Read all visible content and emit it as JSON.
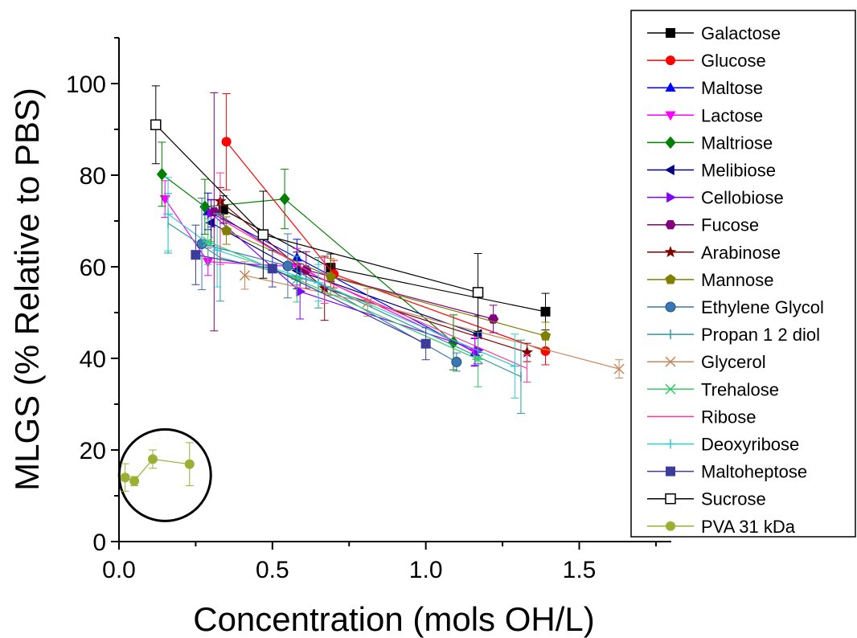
{
  "chart_data": {
    "type": "scatter",
    "title": "",
    "xlabel": "Concentration (mols OH/L)",
    "ylabel": "MLGS (% Relative to PBS)",
    "xlim": [
      0,
      1.8
    ],
    "ylim": [
      0,
      110
    ],
    "x_ticks": [
      "0.0",
      "0.5",
      "1.0",
      "1.5"
    ],
    "y_ticks": [
      "0",
      "20",
      "40",
      "60",
      "80",
      "100"
    ],
    "legend_position": "right",
    "grid": false,
    "annotation": "circle highlighting PVA 31 kDa data",
    "series": [
      {
        "name": "Galactose",
        "color": "#000000",
        "marker": "square",
        "points": [
          {
            "x": 0.34,
            "y": 72.5,
            "err": 3
          },
          {
            "x": 0.69,
            "y": 59.8,
            "err": 3
          },
          {
            "x": 1.39,
            "y": 50.2,
            "err": 4
          }
        ]
      },
      {
        "name": "Glucose",
        "color": "#ff0000",
        "marker": "circle",
        "points": [
          {
            "x": 0.35,
            "y": 87.3,
            "err": 10.5
          },
          {
            "x": 0.7,
            "y": 58.4,
            "err": 3
          },
          {
            "x": 1.39,
            "y": 41.6,
            "err": 3
          }
        ]
      },
      {
        "name": "Maltose",
        "color": "#0000ff",
        "marker": "triangle-up",
        "points": [
          {
            "x": 0.29,
            "y": 72.1,
            "err": 4
          },
          {
            "x": 0.58,
            "y": 62.0,
            "err": 4
          },
          {
            "x": 1.16,
            "y": 41.3,
            "err": 3
          }
        ]
      },
      {
        "name": "Lactose",
        "color": "#ff00ff",
        "marker": "triangle-down",
        "points": [
          {
            "x": 0.15,
            "y": 74.8,
            "err": 4
          },
          {
            "x": 0.29,
            "y": 61.1,
            "err": 3
          },
          {
            "x": 0.58,
            "y": 60.0,
            "err": 4
          },
          {
            "x": 1.16,
            "y": 41.5,
            "err": 3
          }
        ]
      },
      {
        "name": "Maltriose",
        "color": "#008000",
        "marker": "diamond",
        "points": [
          {
            "x": 0.14,
            "y": 80.2,
            "err": 7
          },
          {
            "x": 0.28,
            "y": 73.1,
            "err": 6
          },
          {
            "x": 0.54,
            "y": 74.8,
            "err": 6.5
          },
          {
            "x": 1.09,
            "y": 43.5,
            "err": 6
          }
        ]
      },
      {
        "name": "Melibiose",
        "color": "#000080",
        "marker": "triangle-left",
        "points": [
          {
            "x": 0.3,
            "y": 69.6,
            "err": 5
          },
          {
            "x": 0.58,
            "y": 59.2,
            "err": 4
          },
          {
            "x": 1.17,
            "y": 45.3,
            "err": 4
          }
        ]
      },
      {
        "name": "Cellobiose",
        "color": "#8000ff",
        "marker": "triangle-right",
        "points": [
          {
            "x": 0.3,
            "y": 71.7,
            "err": 3
          },
          {
            "x": 0.59,
            "y": 54.6,
            "err": 6
          },
          {
            "x": 1.17,
            "y": 41.8,
            "err": 3
          }
        ]
      },
      {
        "name": "Fucose",
        "color": "#800080",
        "marker": "hexagon",
        "points": [
          {
            "x": 0.31,
            "y": 72.0,
            "err": 26
          },
          {
            "x": 0.61,
            "y": 59.3,
            "err": 4
          },
          {
            "x": 1.22,
            "y": 48.6,
            "err": 3
          }
        ]
      },
      {
        "name": "Arabinose",
        "color": "#800000",
        "marker": "star",
        "points": [
          {
            "x": 0.33,
            "y": 74.3,
            "err": 3
          },
          {
            "x": 0.67,
            "y": 55.3,
            "err": 7
          },
          {
            "x": 1.33,
            "y": 41.3,
            "err": 2
          }
        ]
      },
      {
        "name": "Mannose",
        "color": "#808000",
        "marker": "pentagon",
        "points": [
          {
            "x": 0.35,
            "y": 67.9,
            "err": 3
          },
          {
            "x": 0.69,
            "y": 57.8,
            "err": 4
          },
          {
            "x": 1.39,
            "y": 44.9,
            "err": 3
          }
        ]
      },
      {
        "name": "Ethylene Glycol",
        "color": "#3b77b4",
        "marker": "ball",
        "points": [
          {
            "x": 0.27,
            "y": 65.0,
            "err": 10
          },
          {
            "x": 0.55,
            "y": 60.2,
            "err": 7
          },
          {
            "x": 1.1,
            "y": 39.2,
            "err": 2
          }
        ]
      },
      {
        "name": "Propan 1 2 diol",
        "color": "#2a9b9b",
        "marker": "vline",
        "points": [
          {
            "x": 0.16,
            "y": 69.5,
            "err": 6.5
          },
          {
            "x": 0.33,
            "y": 62.0,
            "err": 9.5
          },
          {
            "x": 0.65,
            "y": 56.5,
            "err": 5.5
          },
          {
            "x": 1.31,
            "y": 36.0,
            "err": 8
          }
        ]
      },
      {
        "name": "Glycerol",
        "color": "#c8865a",
        "marker": "x",
        "points": [
          {
            "x": 0.41,
            "y": 58.1,
            "err": 3
          },
          {
            "x": 0.81,
            "y": 52.2,
            "err": 3
          },
          {
            "x": 1.63,
            "y": 37.7,
            "err": 2
          }
        ]
      },
      {
        "name": "Trehalose",
        "color": "#33cc66",
        "marker": "asterisk",
        "points": [
          {
            "x": 0.29,
            "y": 65.5,
            "err": 5
          },
          {
            "x": 0.58,
            "y": 57.3,
            "err": 5
          },
          {
            "x": 1.17,
            "y": 39.8,
            "err": 6
          }
        ]
      },
      {
        "name": "Ribose",
        "color": "#ff3399",
        "marker": "none",
        "points": [
          {
            "x": 0.33,
            "y": 70.5,
            "err": 10
          },
          {
            "x": 0.67,
            "y": 57.0,
            "err": 5
          },
          {
            "x": 1.33,
            "y": 37.8,
            "err": 3
          }
        ]
      },
      {
        "name": "Deoxyribose",
        "color": "#33cccc",
        "marker": "plus",
        "points": [
          {
            "x": 0.16,
            "y": 71.5,
            "err": 8
          },
          {
            "x": 0.32,
            "y": 63.6,
            "err": 8
          },
          {
            "x": 0.65,
            "y": 56.5,
            "err": 4
          },
          {
            "x": 1.29,
            "y": 38.3,
            "err": 7
          }
        ]
      },
      {
        "name": "Maltoheptose",
        "color": "#3c3c9c",
        "marker": "square",
        "points": [
          {
            "x": 0.25,
            "y": 62.6,
            "err": 6.5
          },
          {
            "x": 0.5,
            "y": 59.6,
            "err": 4
          },
          {
            "x": 1.0,
            "y": 43.2,
            "err": 3.5
          }
        ]
      },
      {
        "name": "Sucrose",
        "color": "#000000",
        "marker": "open-square",
        "points": [
          {
            "x": 0.12,
            "y": 91.0,
            "err": 8.5
          },
          {
            "x": 0.47,
            "y": 67.0,
            "err": 9.5
          },
          {
            "x": 1.17,
            "y": 54.4,
            "err": 8.5
          }
        ]
      },
      {
        "name": "PVA 31 kDa",
        "color": "#99b033",
        "marker": "circle",
        "points": [
          {
            "x": 0.02,
            "y": 14.0,
            "err": 3
          },
          {
            "x": 0.05,
            "y": 13.2,
            "err": 1
          },
          {
            "x": 0.11,
            "y": 18.0,
            "err": 2
          },
          {
            "x": 0.23,
            "y": 16.9,
            "err": 4.7
          }
        ]
      }
    ]
  }
}
